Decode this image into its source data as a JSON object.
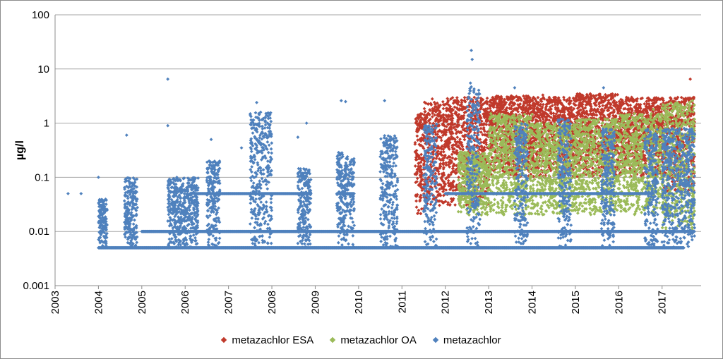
{
  "chart_data": {
    "type": "scatter",
    "title": "",
    "xlabel": "",
    "ylabel": "µg/l",
    "y_scale": "log",
    "ylim": [
      0.001,
      100
    ],
    "xlim": [
      2003,
      2017.9
    ],
    "y_ticks": [
      "0.001",
      "0.01",
      "0.1",
      "1",
      "10",
      "100"
    ],
    "x_ticks": [
      "2003",
      "2004",
      "2005",
      "2006",
      "2007",
      "2008",
      "2009",
      "2010",
      "2011",
      "2012",
      "2013",
      "2014",
      "2015",
      "2016",
      "2017"
    ],
    "grid": "horizontal",
    "legend_position": "bottom",
    "series": [
      {
        "name": "metazachlor ESA",
        "color": "#c0392b",
        "clusters": [
          {
            "x": [
              2011.3,
              2011.5
            ],
            "y_min": 0.02,
            "y_max": 1.5
          },
          {
            "x": [
              2011.5,
              2012.0
            ],
            "y_min": 0.03,
            "y_max": 2.5
          },
          {
            "x": [
              2012.0,
              2013.0
            ],
            "y_min": 0.03,
            "y_max": 3.0
          },
          {
            "x": [
              2013.0,
              2014.0
            ],
            "y_min": 0.1,
            "y_max": 3.2
          },
          {
            "x": [
              2014.0,
              2015.0
            ],
            "y_min": 0.1,
            "y_max": 3.0
          },
          {
            "x": [
              2015.0,
              2016.0
            ],
            "y_min": 0.1,
            "y_max": 3.5
          },
          {
            "x": [
              2016.0,
              2017.0
            ],
            "y_min": 0.1,
            "y_max": 3.0
          },
          {
            "x": [
              2017.0,
              2017.75
            ],
            "y_min": 0.05,
            "y_max": 3.0
          }
        ],
        "points": [
          {
            "x": 2011.7,
            "y": 2.8
          },
          {
            "x": 2012.55,
            "y": 3.0
          },
          {
            "x": 2015.1,
            "y": 3.5
          },
          {
            "x": 2017.65,
            "y": 6.5
          },
          {
            "x": 2014.25,
            "y": 3.3
          }
        ]
      },
      {
        "name": "metazachlor OA",
        "color": "#9bbb59",
        "clusters": [
          {
            "x": [
              2012.3,
              2013.0
            ],
            "y_min": 0.02,
            "y_max": 0.3
          },
          {
            "x": [
              2013.0,
              2014.0
            ],
            "y_min": 0.02,
            "y_max": 1.5
          },
          {
            "x": [
              2014.0,
              2015.0
            ],
            "y_min": 0.02,
            "y_max": 1.0
          },
          {
            "x": [
              2015.0,
              2016.0
            ],
            "y_min": 0.02,
            "y_max": 1.2
          },
          {
            "x": [
              2016.0,
              2017.0
            ],
            "y_min": 0.02,
            "y_max": 1.5
          },
          {
            "x": [
              2017.0,
              2017.75
            ],
            "y_min": 0.01,
            "y_max": 2.5
          }
        ],
        "points": [
          {
            "x": 2017.7,
            "y": 2.6
          },
          {
            "x": 2016.8,
            "y": 1.8
          },
          {
            "x": 2013.05,
            "y": 1.5
          }
        ]
      },
      {
        "name": "metazachlor",
        "color": "#4f81bd",
        "baseline_levels": [
          {
            "y": 0.005,
            "x": [
              2004.0,
              2017.5
            ]
          },
          {
            "y": 0.01,
            "x": [
              2005.0,
              2017.75
            ]
          },
          {
            "y": 0.05,
            "x": [
              2006.2,
              2008.9
            ]
          },
          {
            "y": 0.05,
            "x": [
              2009.5,
              2009.9
            ]
          },
          {
            "y": 0.05,
            "x": [
              2012.0,
              2016.8
            ]
          }
        ],
        "clusters": [
          {
            "x": [
              2004.0,
              2004.2
            ],
            "y_min": 0.005,
            "y_max": 0.04
          },
          {
            "x": [
              2004.6,
              2004.9
            ],
            "y_min": 0.005,
            "y_max": 0.1
          },
          {
            "x": [
              2005.6,
              2006.3
            ],
            "y_min": 0.005,
            "y_max": 0.1
          },
          {
            "x": [
              2006.5,
              2006.8
            ],
            "y_min": 0.005,
            "y_max": 0.2
          },
          {
            "x": [
              2007.5,
              2008.0
            ],
            "y_min": 0.005,
            "y_max": 1.6
          },
          {
            "x": [
              2008.6,
              2008.9
            ],
            "y_min": 0.005,
            "y_max": 0.15
          },
          {
            "x": [
              2009.5,
              2009.9
            ],
            "y_min": 0.005,
            "y_max": 0.3
          },
          {
            "x": [
              2010.5,
              2010.9
            ],
            "y_min": 0.005,
            "y_max": 0.6
          },
          {
            "x": [
              2011.5,
              2011.8
            ],
            "y_min": 0.005,
            "y_max": 1.0
          },
          {
            "x": [
              2012.5,
              2012.8
            ],
            "y_min": 0.005,
            "y_max": 5.0
          },
          {
            "x": [
              2013.6,
              2013.9
            ],
            "y_min": 0.005,
            "y_max": 1.0
          },
          {
            "x": [
              2014.6,
              2014.9
            ],
            "y_min": 0.005,
            "y_max": 1.2
          },
          {
            "x": [
              2015.6,
              2015.9
            ],
            "y_min": 0.005,
            "y_max": 0.8
          },
          {
            "x": [
              2016.6,
              2016.9
            ],
            "y_min": 0.005,
            "y_max": 0.8
          },
          {
            "x": [
              2017.0,
              2017.75
            ],
            "y_min": 0.005,
            "y_max": 0.8
          }
        ],
        "points": [
          {
            "x": 2003.3,
            "y": 0.05
          },
          {
            "x": 2003.6,
            "y": 0.05
          },
          {
            "x": 2004.0,
            "y": 0.1
          },
          {
            "x": 2004.65,
            "y": 0.6
          },
          {
            "x": 2005.6,
            "y": 6.5
          },
          {
            "x": 2005.6,
            "y": 0.9
          },
          {
            "x": 2007.65,
            "y": 2.4
          },
          {
            "x": 2008.6,
            "y": 0.55
          },
          {
            "x": 2008.8,
            "y": 1.0
          },
          {
            "x": 2009.6,
            "y": 2.6
          },
          {
            "x": 2009.7,
            "y": 2.5
          },
          {
            "x": 2010.6,
            "y": 2.6
          },
          {
            "x": 2012.6,
            "y": 22
          },
          {
            "x": 2012.62,
            "y": 15
          },
          {
            "x": 2012.58,
            "y": 5.5
          },
          {
            "x": 2013.6,
            "y": 4.5
          },
          {
            "x": 2015.65,
            "y": 4.5
          },
          {
            "x": 2007.3,
            "y": 0.35
          },
          {
            "x": 2006.6,
            "y": 0.5
          }
        ]
      }
    ]
  }
}
